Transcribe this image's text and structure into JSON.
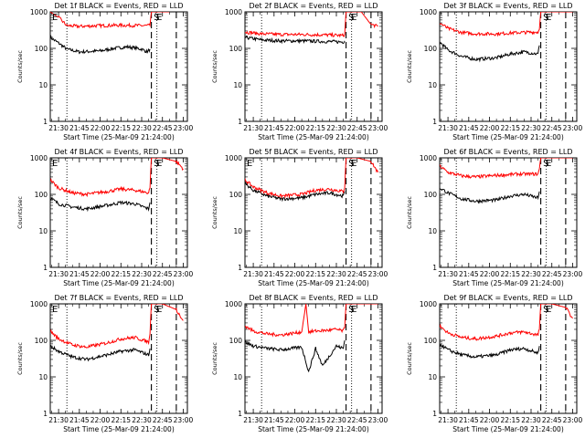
{
  "figure": {
    "x_label": "Start Time (25-Mar-09 21:24:00)",
    "y_label": "Counts/sec",
    "colors": {
      "events": "#000000",
      "lld": "#ff0000",
      "axes": "#000000"
    }
  },
  "chart_data": [
    {
      "type": "line",
      "title": "Det 1f BLACK = Events, RED = LLD",
      "xlabel": "Start Time (25-Mar-09 21:24:00)",
      "ylabel": "Counts/sec",
      "yscale": "log",
      "ylim": [
        1,
        1000
      ],
      "xlim": [
        "21:24",
        "23:03"
      ],
      "x_ticks": [
        "21:30",
        "21:45",
        "22:00",
        "22:15",
        "22:30",
        "22:45",
        "23:00"
      ],
      "y_ticks": [
        "1",
        "10",
        "100",
        "1000"
      ],
      "vlines": [
        {
          "time": "21:36",
          "style": "dotted"
        },
        {
          "time": "22:37",
          "style": "dashed"
        },
        {
          "time": "22:41",
          "style": "dotted"
        },
        {
          "time": "22:55",
          "style": "dashed"
        }
      ],
      "markers": [
        {
          "time": "21:24",
          "text": "E"
        },
        {
          "time": "22:38",
          "text": "S"
        },
        {
          "time": "22:40",
          "text": "E"
        }
      ],
      "series": [
        {
          "name": "Events",
          "x": [
            "21:24",
            "21:30",
            "21:36",
            "21:45",
            "22:00",
            "22:10",
            "22:20",
            "22:30",
            "22:34",
            "22:36"
          ],
          "y": [
            200,
            140,
            95,
            80,
            85,
            100,
            110,
            95,
            80,
            95
          ]
        },
        {
          "name": "LLD",
          "x": [
            "21:24",
            "21:30",
            "21:36",
            "21:45",
            "22:00",
            "22:15",
            "22:30",
            "22:36",
            "22:37",
            "22:40",
            "22:50"
          ],
          "y": [
            1000,
            700,
            420,
            400,
            420,
            430,
            420,
            420,
            1000,
            1000,
            1000
          ]
        }
      ]
    },
    {
      "type": "line",
      "title": "Det 2f BLACK = Events, RED = LLD",
      "xlabel": "Start Time (25-Mar-09 21:24:00)",
      "ylabel": "Counts/sec",
      "yscale": "log",
      "ylim": [
        1,
        1000
      ],
      "xlim": [
        "21:24",
        "23:03"
      ],
      "x_ticks": [
        "21:30",
        "21:45",
        "22:00",
        "22:15",
        "22:30",
        "22:45",
        "23:00"
      ],
      "y_ticks": [
        "1",
        "10",
        "100",
        "1000"
      ],
      "vlines": [
        {
          "time": "21:36",
          "style": "dotted"
        },
        {
          "time": "22:37",
          "style": "dashed"
        },
        {
          "time": "22:41",
          "style": "dotted"
        },
        {
          "time": "22:55",
          "style": "dashed"
        }
      ],
      "markers": [
        {
          "time": "22:38",
          "text": "S"
        },
        {
          "time": "22:40",
          "text": "E"
        }
      ],
      "series": [
        {
          "name": "Events",
          "x": [
            "21:24",
            "21:36",
            "21:50",
            "22:05",
            "22:20",
            "22:35",
            "22:36"
          ],
          "y": [
            200,
            170,
            160,
            160,
            155,
            150,
            160
          ]
        },
        {
          "name": "LLD",
          "x": [
            "21:24",
            "21:36",
            "21:50",
            "22:05",
            "22:20",
            "22:35",
            "22:36",
            "22:37",
            "22:41",
            "22:48",
            "22:55",
            "23:00"
          ],
          "y": [
            280,
            250,
            240,
            240,
            235,
            225,
            240,
            1000,
            1000,
            1000,
            450,
            400
          ]
        }
      ]
    },
    {
      "type": "line",
      "title": "Det 3f BLACK = Events, RED = LLD",
      "xlabel": "Start Time (25-Mar-09 21:24:00)",
      "ylabel": "Counts/sec",
      "yscale": "log",
      "ylim": [
        1,
        1000
      ],
      "xlim": [
        "21:24",
        "23:03"
      ],
      "x_ticks": [
        "21:30",
        "21:45",
        "22:00",
        "22:15",
        "22:30",
        "22:45",
        "23:00"
      ],
      "y_ticks": [
        "1",
        "10",
        "100",
        "1000"
      ],
      "vlines": [
        {
          "time": "21:36",
          "style": "dotted"
        },
        {
          "time": "22:37",
          "style": "dashed"
        },
        {
          "time": "22:41",
          "style": "dotted"
        },
        {
          "time": "22:55",
          "style": "dashed"
        }
      ],
      "markers": [
        {
          "time": "22:38",
          "text": "S"
        },
        {
          "time": "22:40",
          "text": "E"
        }
      ],
      "series": [
        {
          "name": "Events",
          "x": [
            "21:24",
            "21:30",
            "21:40",
            "21:50",
            "22:05",
            "22:15",
            "22:25",
            "22:35",
            "22:36"
          ],
          "y": [
            150,
            90,
            60,
            50,
            55,
            70,
            80,
            70,
            120
          ]
        },
        {
          "name": "LLD",
          "x": [
            "21:24",
            "21:30",
            "21:40",
            "21:50",
            "22:05",
            "22:20",
            "22:35",
            "22:36",
            "22:37",
            "22:42",
            "22:52",
            "23:00"
          ],
          "y": [
            500,
            350,
            270,
            250,
            250,
            270,
            280,
            330,
            1000,
            1000,
            1000,
            1000
          ]
        }
      ]
    },
    {
      "type": "line",
      "title": "Det 4f BLACK = Events, RED = LLD",
      "xlabel": "Start Time (25-Mar-09 21:24:00)",
      "ylabel": "Counts/sec",
      "yscale": "log",
      "ylim": [
        1,
        1000
      ],
      "xlim": [
        "21:24",
        "23:03"
      ],
      "x_ticks": [
        "21:30",
        "21:45",
        "22:00",
        "22:15",
        "22:30",
        "22:45",
        "23:00"
      ],
      "y_ticks": [
        "1",
        "10",
        "100",
        "1000"
      ],
      "vlines": [
        {
          "time": "21:36",
          "style": "dotted"
        },
        {
          "time": "22:37",
          "style": "dashed"
        },
        {
          "time": "22:41",
          "style": "dotted"
        },
        {
          "time": "22:55",
          "style": "dashed"
        }
      ],
      "markers": [
        {
          "time": "21:24",
          "text": "E"
        },
        {
          "time": "22:38",
          "text": "S"
        },
        {
          "time": "22:40",
          "text": "E"
        }
      ],
      "series": [
        {
          "name": "Events",
          "x": [
            "21:24",
            "21:30",
            "21:40",
            "21:50",
            "22:05",
            "22:15",
            "22:25",
            "22:35",
            "22:36"
          ],
          "y": [
            80,
            55,
            45,
            40,
            50,
            60,
            55,
            40,
            60
          ]
        },
        {
          "name": "LLD",
          "x": [
            "21:24",
            "21:30",
            "21:40",
            "21:50",
            "22:05",
            "22:15",
            "22:25",
            "22:35",
            "22:36",
            "22:37",
            "22:45",
            "22:55",
            "23:00"
          ],
          "y": [
            250,
            150,
            110,
            100,
            120,
            140,
            130,
            110,
            150,
            1000,
            1000,
            800,
            500
          ]
        }
      ]
    },
    {
      "type": "line",
      "title": "Det 5f BLACK = Events, RED = LLD",
      "xlabel": "Start Time (25-Mar-09 21:24:00)",
      "ylabel": "Counts/sec",
      "yscale": "log",
      "ylim": [
        1,
        1000
      ],
      "xlim": [
        "21:24",
        "23:03"
      ],
      "x_ticks": [
        "21:30",
        "21:45",
        "22:00",
        "22:15",
        "22:30",
        "22:45",
        "23:00"
      ],
      "y_ticks": [
        "1",
        "10",
        "100",
        "1000"
      ],
      "vlines": [
        {
          "time": "21:36",
          "style": "dotted"
        },
        {
          "time": "22:37",
          "style": "dashed"
        },
        {
          "time": "22:41",
          "style": "dotted"
        },
        {
          "time": "22:55",
          "style": "dashed"
        }
      ],
      "markers": [
        {
          "time": "21:24",
          "text": "E"
        },
        {
          "time": "22:38",
          "text": "S"
        },
        {
          "time": "22:40",
          "text": "E"
        }
      ],
      "series": [
        {
          "name": "Events",
          "x": [
            "21:24",
            "21:30",
            "21:40",
            "21:50",
            "22:05",
            "22:15",
            "22:25",
            "22:35",
            "22:36"
          ],
          "y": [
            200,
            130,
            90,
            75,
            80,
            100,
            110,
            90,
            120
          ]
        },
        {
          "name": "LLD",
          "x": [
            "21:24",
            "21:30",
            "21:40",
            "21:50",
            "22:05",
            "22:15",
            "22:25",
            "22:35",
            "22:36",
            "22:37",
            "22:45",
            "22:55",
            "23:00"
          ],
          "y": [
            250,
            160,
            110,
            90,
            100,
            130,
            140,
            120,
            150,
            1000,
            1000,
            800,
            400
          ]
        }
      ]
    },
    {
      "type": "line",
      "title": "Det 6f BLACK = Events, RED = LLD",
      "xlabel": "Start Time (25-Mar-09 21:24:00)",
      "ylabel": "Counts/sec",
      "yscale": "log",
      "ylim": [
        1,
        1000
      ],
      "xlim": [
        "21:24",
        "23:03"
      ],
      "x_ticks": [
        "21:30",
        "21:45",
        "22:00",
        "22:15",
        "22:30",
        "22:45",
        "23:00"
      ],
      "y_ticks": [
        "1",
        "10",
        "100",
        "1000"
      ],
      "vlines": [
        {
          "time": "21:36",
          "style": "dotted"
        },
        {
          "time": "22:37",
          "style": "dashed"
        },
        {
          "time": "22:41",
          "style": "dotted"
        },
        {
          "time": "22:55",
          "style": "dashed"
        }
      ],
      "markers": [
        {
          "time": "22:38",
          "text": "S"
        },
        {
          "time": "22:40",
          "text": "E"
        }
      ],
      "series": [
        {
          "name": "Events",
          "x": [
            "21:24",
            "21:30",
            "21:40",
            "21:50",
            "22:05",
            "22:15",
            "22:25",
            "22:35",
            "22:36"
          ],
          "y": [
            150,
            110,
            75,
            65,
            70,
            90,
            100,
            80,
            120
          ]
        },
        {
          "name": "LLD",
          "x": [
            "21:24",
            "21:30",
            "21:40",
            "21:50",
            "22:05",
            "22:20",
            "22:35",
            "22:36",
            "22:37",
            "22:45",
            "22:55",
            "23:00"
          ],
          "y": [
            600,
            400,
            320,
            300,
            330,
            360,
            360,
            500,
            1000,
            1000,
            1000,
            1000
          ]
        }
      ]
    },
    {
      "type": "line",
      "title": "Det 7f BLACK = Events, RED = LLD",
      "xlabel": "Start Time (25-Mar-09 21:24:00)",
      "ylabel": "Counts/sec",
      "yscale": "log",
      "ylim": [
        1,
        1000
      ],
      "xlim": [
        "21:24",
        "23:03"
      ],
      "x_ticks": [
        "21:30",
        "21:45",
        "22:00",
        "22:15",
        "22:30",
        "22:45",
        "23:00"
      ],
      "y_ticks": [
        "1",
        "10",
        "100",
        "1000"
      ],
      "vlines": [
        {
          "time": "21:36",
          "style": "dotted"
        },
        {
          "time": "22:37",
          "style": "dashed"
        },
        {
          "time": "22:41",
          "style": "dotted"
        },
        {
          "time": "22:55",
          "style": "dashed"
        }
      ],
      "markers": [
        {
          "time": "21:24",
          "text": "E"
        },
        {
          "time": "22:38",
          "text": "S"
        },
        {
          "time": "22:40",
          "text": "E"
        }
      ],
      "series": [
        {
          "name": "Events",
          "x": [
            "21:24",
            "21:30",
            "21:40",
            "21:50",
            "22:05",
            "22:15",
            "22:25",
            "22:35",
            "22:36"
          ],
          "y": [
            70,
            50,
            35,
            30,
            40,
            50,
            55,
            40,
            60
          ]
        },
        {
          "name": "LLD",
          "x": [
            "21:24",
            "21:30",
            "21:40",
            "21:50",
            "22:05",
            "22:15",
            "22:25",
            "22:35",
            "22:36",
            "22:37",
            "22:45",
            "22:55",
            "23:00"
          ],
          "y": [
            180,
            110,
            75,
            65,
            85,
            110,
            120,
            90,
            150,
            1000,
            1000,
            700,
            350
          ]
        }
      ]
    },
    {
      "type": "line",
      "title": "Det 8f BLACK = Events, RED = LLD",
      "xlabel": "Start Time (25-Mar-09 21:24:00)",
      "ylabel": "Counts/sec",
      "yscale": "log",
      "ylim": [
        1,
        1000
      ],
      "xlim": [
        "21:24",
        "23:03"
      ],
      "x_ticks": [
        "21:30",
        "21:45",
        "22:00",
        "22:15",
        "22:30",
        "22:45",
        "23:00"
      ],
      "y_ticks": [
        "1",
        "10",
        "100",
        "1000"
      ],
      "vlines": [
        {
          "time": "21:36",
          "style": "dotted"
        },
        {
          "time": "22:37",
          "style": "dashed"
        },
        {
          "time": "22:41",
          "style": "dotted"
        },
        {
          "time": "22:55",
          "style": "dashed"
        }
      ],
      "markers": [
        {
          "time": "22:38",
          "text": "S"
        },
        {
          "time": "22:40",
          "text": "E"
        }
      ],
      "series": [
        {
          "name": "Events",
          "x": [
            "21:24",
            "21:30",
            "21:40",
            "21:50",
            "22:05",
            "22:10",
            "22:15",
            "22:20",
            "22:30",
            "22:35",
            "22:36"
          ],
          "y": [
            90,
            70,
            60,
            55,
            65,
            14,
            60,
            20,
            70,
            60,
            100
          ]
        },
        {
          "name": "LLD",
          "x": [
            "21:24",
            "21:30",
            "21:40",
            "21:50",
            "22:05",
            "22:08",
            "22:10",
            "22:15",
            "22:25",
            "22:30",
            "22:35",
            "22:36",
            "22:37",
            "22:45",
            "22:55",
            "23:00"
          ],
          "y": [
            250,
            180,
            150,
            140,
            170,
            1000,
            170,
            180,
            190,
            200,
            180,
            220,
            1000,
            1000,
            1000,
            1000
          ]
        }
      ]
    },
    {
      "type": "line",
      "title": "Det 9f BLACK = Events, RED = LLD",
      "xlabel": "Start Time (25-Mar-09 21:24:00)",
      "ylabel": "Counts/sec",
      "yscale": "log",
      "ylim": [
        1,
        1000
      ],
      "xlim": [
        "21:24",
        "23:03"
      ],
      "x_ticks": [
        "21:30",
        "21:45",
        "22:00",
        "22:15",
        "22:30",
        "22:45",
        "23:00"
      ],
      "y_ticks": [
        "1",
        "10",
        "100",
        "1000"
      ],
      "vlines": [
        {
          "time": "21:36",
          "style": "dotted"
        },
        {
          "time": "22:37",
          "style": "dashed"
        },
        {
          "time": "22:41",
          "style": "dotted"
        },
        {
          "time": "22:55",
          "style": "dashed"
        }
      ],
      "markers": [
        {
          "time": "22:38",
          "text": "S"
        },
        {
          "time": "22:40",
          "text": "E"
        }
      ],
      "series": [
        {
          "name": "Events",
          "x": [
            "21:24",
            "21:30",
            "21:40",
            "21:50",
            "22:05",
            "22:15",
            "22:25",
            "22:35",
            "22:36"
          ],
          "y": [
            80,
            55,
            40,
            35,
            40,
            55,
            60,
            45,
            70
          ]
        },
        {
          "name": "LLD",
          "x": [
            "21:24",
            "21:30",
            "21:40",
            "21:50",
            "22:05",
            "22:15",
            "22:25",
            "22:35",
            "22:36",
            "22:37",
            "22:45",
            "22:55",
            "23:00"
          ],
          "y": [
            250,
            160,
            120,
            110,
            130,
            160,
            170,
            140,
            200,
            1000,
            1000,
            800,
            400
          ]
        }
      ]
    }
  ]
}
